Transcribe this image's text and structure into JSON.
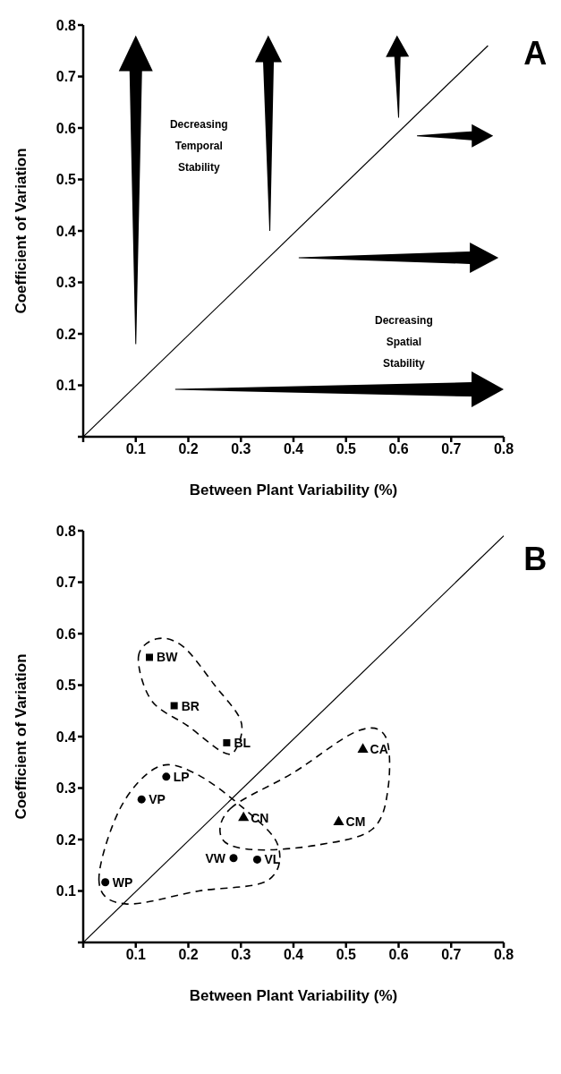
{
  "chart_data": [
    {
      "type": "line",
      "xlabel": "Between Plant Variability (%)",
      "ylabel": "Coefficient of Variation",
      "xlim": [
        0,
        0.8
      ],
      "ylim": [
        0,
        0.8
      ],
      "xticks": [
        {
          "value": 0,
          "label": null
        },
        0.1,
        0.2,
        0.3,
        0.4,
        0.5,
        0.6,
        0.7,
        0.8
      ],
      "yticks": [
        {
          "value": 0,
          "label": null
        },
        0.1,
        0.2,
        0.3,
        0.4,
        0.5,
        0.6,
        0.7,
        0.8
      ],
      "marker": "none",
      "line_style": "solid",
      "series": [
        {
          "type": "line",
          "x": [
            0,
            0.77
          ],
          "values": [
            0,
            0.76
          ],
          "color": "#000000"
        }
      ],
      "annotations": [
        "A",
        "Decreasing Temporal Stability",
        "Decreasing Spatial Stability"
      ]
    },
    {
      "type": "scatter",
      "xlabel": "Between Plant Variability (%)",
      "ylabel": "Coefficient of Variation",
      "xlim": [
        0,
        0.8
      ],
      "ylim": [
        0,
        0.8
      ],
      "xticks": [
        {
          "value": 0,
          "label": null
        },
        0.1,
        0.2,
        0.3,
        0.4,
        0.5,
        0.6,
        0.7,
        0.8
      ],
      "yticks": [
        {
          "value": 0,
          "label": null
        },
        0.1,
        0.2,
        0.3,
        0.4,
        0.5,
        0.6,
        0.7,
        0.8
      ],
      "series": [
        {
          "type": "scatter",
          "marker": "square",
          "color": "#000000",
          "x": [
            0.126,
            0.173,
            0.273
          ],
          "values": [
            0.554,
            0.46,
            0.388
          ]
        },
        {
          "type": "scatter",
          "marker": "circle",
          "color": "#000000",
          "x": [
            0.158,
            0.111,
            0.286,
            0.331,
            0.042
          ],
          "values": [
            0.322,
            0.278,
            0.164,
            0.161,
            0.117
          ]
        },
        {
          "type": "scatter",
          "marker": "triangle",
          "color": "#000000",
          "x": [
            0.532,
            0.305,
            0.486
          ],
          "values": [
            0.375,
            0.242,
            0.234
          ]
        },
        {
          "type": "line",
          "marker": "none",
          "color": "#000000",
          "x": [
            0,
            0.8
          ],
          "values": [
            0,
            0.79
          ]
        }
      ],
      "annotations": [
        "B",
        {
          "text": "BW",
          "x": 0.126,
          "y": 0.554
        },
        {
          "text": "BR",
          "x": 0.173,
          "y": 0.46
        },
        {
          "text": "BL",
          "x": 0.273,
          "y": 0.388
        },
        {
          "text": "LP",
          "x": 0.158,
          "y": 0.322
        },
        {
          "text": "VP",
          "x": 0.111,
          "y": 0.278
        },
        {
          "text": "VW",
          "x": 0.286,
          "y": 0.164
        },
        {
          "text": "VL",
          "x": 0.331,
          "y": 0.161
        },
        {
          "text": "WP",
          "x": 0.042,
          "y": 0.117
        },
        {
          "text": "CA",
          "x": 0.532,
          "y": 0.375
        },
        {
          "text": "CN",
          "x": 0.305,
          "y": 0.242
        },
        {
          "text": "CM",
          "x": 0.486,
          "y": 0.234
        }
      ]
    }
  ]
}
